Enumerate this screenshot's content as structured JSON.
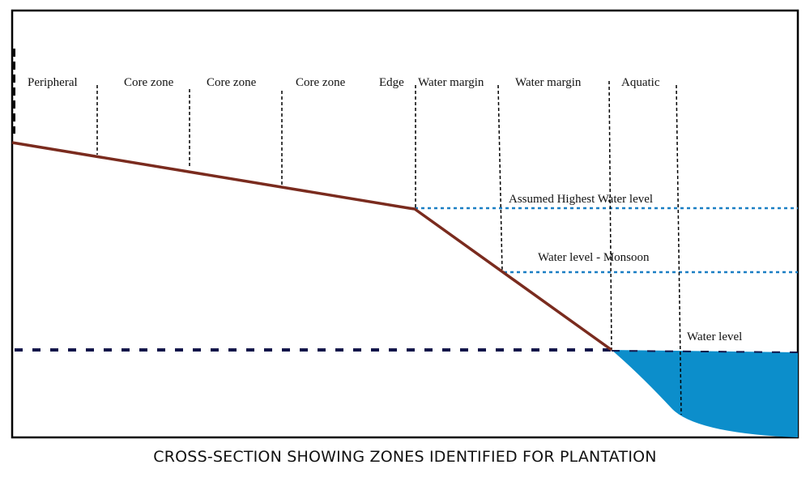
{
  "diagram": {
    "zones": [
      "Peripheral",
      "Core zone",
      "Core zone",
      "Core zone",
      "Edge",
      "Water margin",
      "Water margin",
      "Aquatic"
    ],
    "levels": {
      "highest": "Assumed Highest Water level",
      "monsoon": "Water level - Monsoon",
      "normal": "Water level"
    },
    "colors": {
      "ground": "#7a2b1e",
      "water": "#0c8ecb",
      "level_dots": "#1b7fc4",
      "base_dash": "#12154a",
      "frame": "#000000"
    }
  },
  "caption": "CROSS-SECTION SHOWING ZONES IDENTIFIED FOR PLANTATION"
}
